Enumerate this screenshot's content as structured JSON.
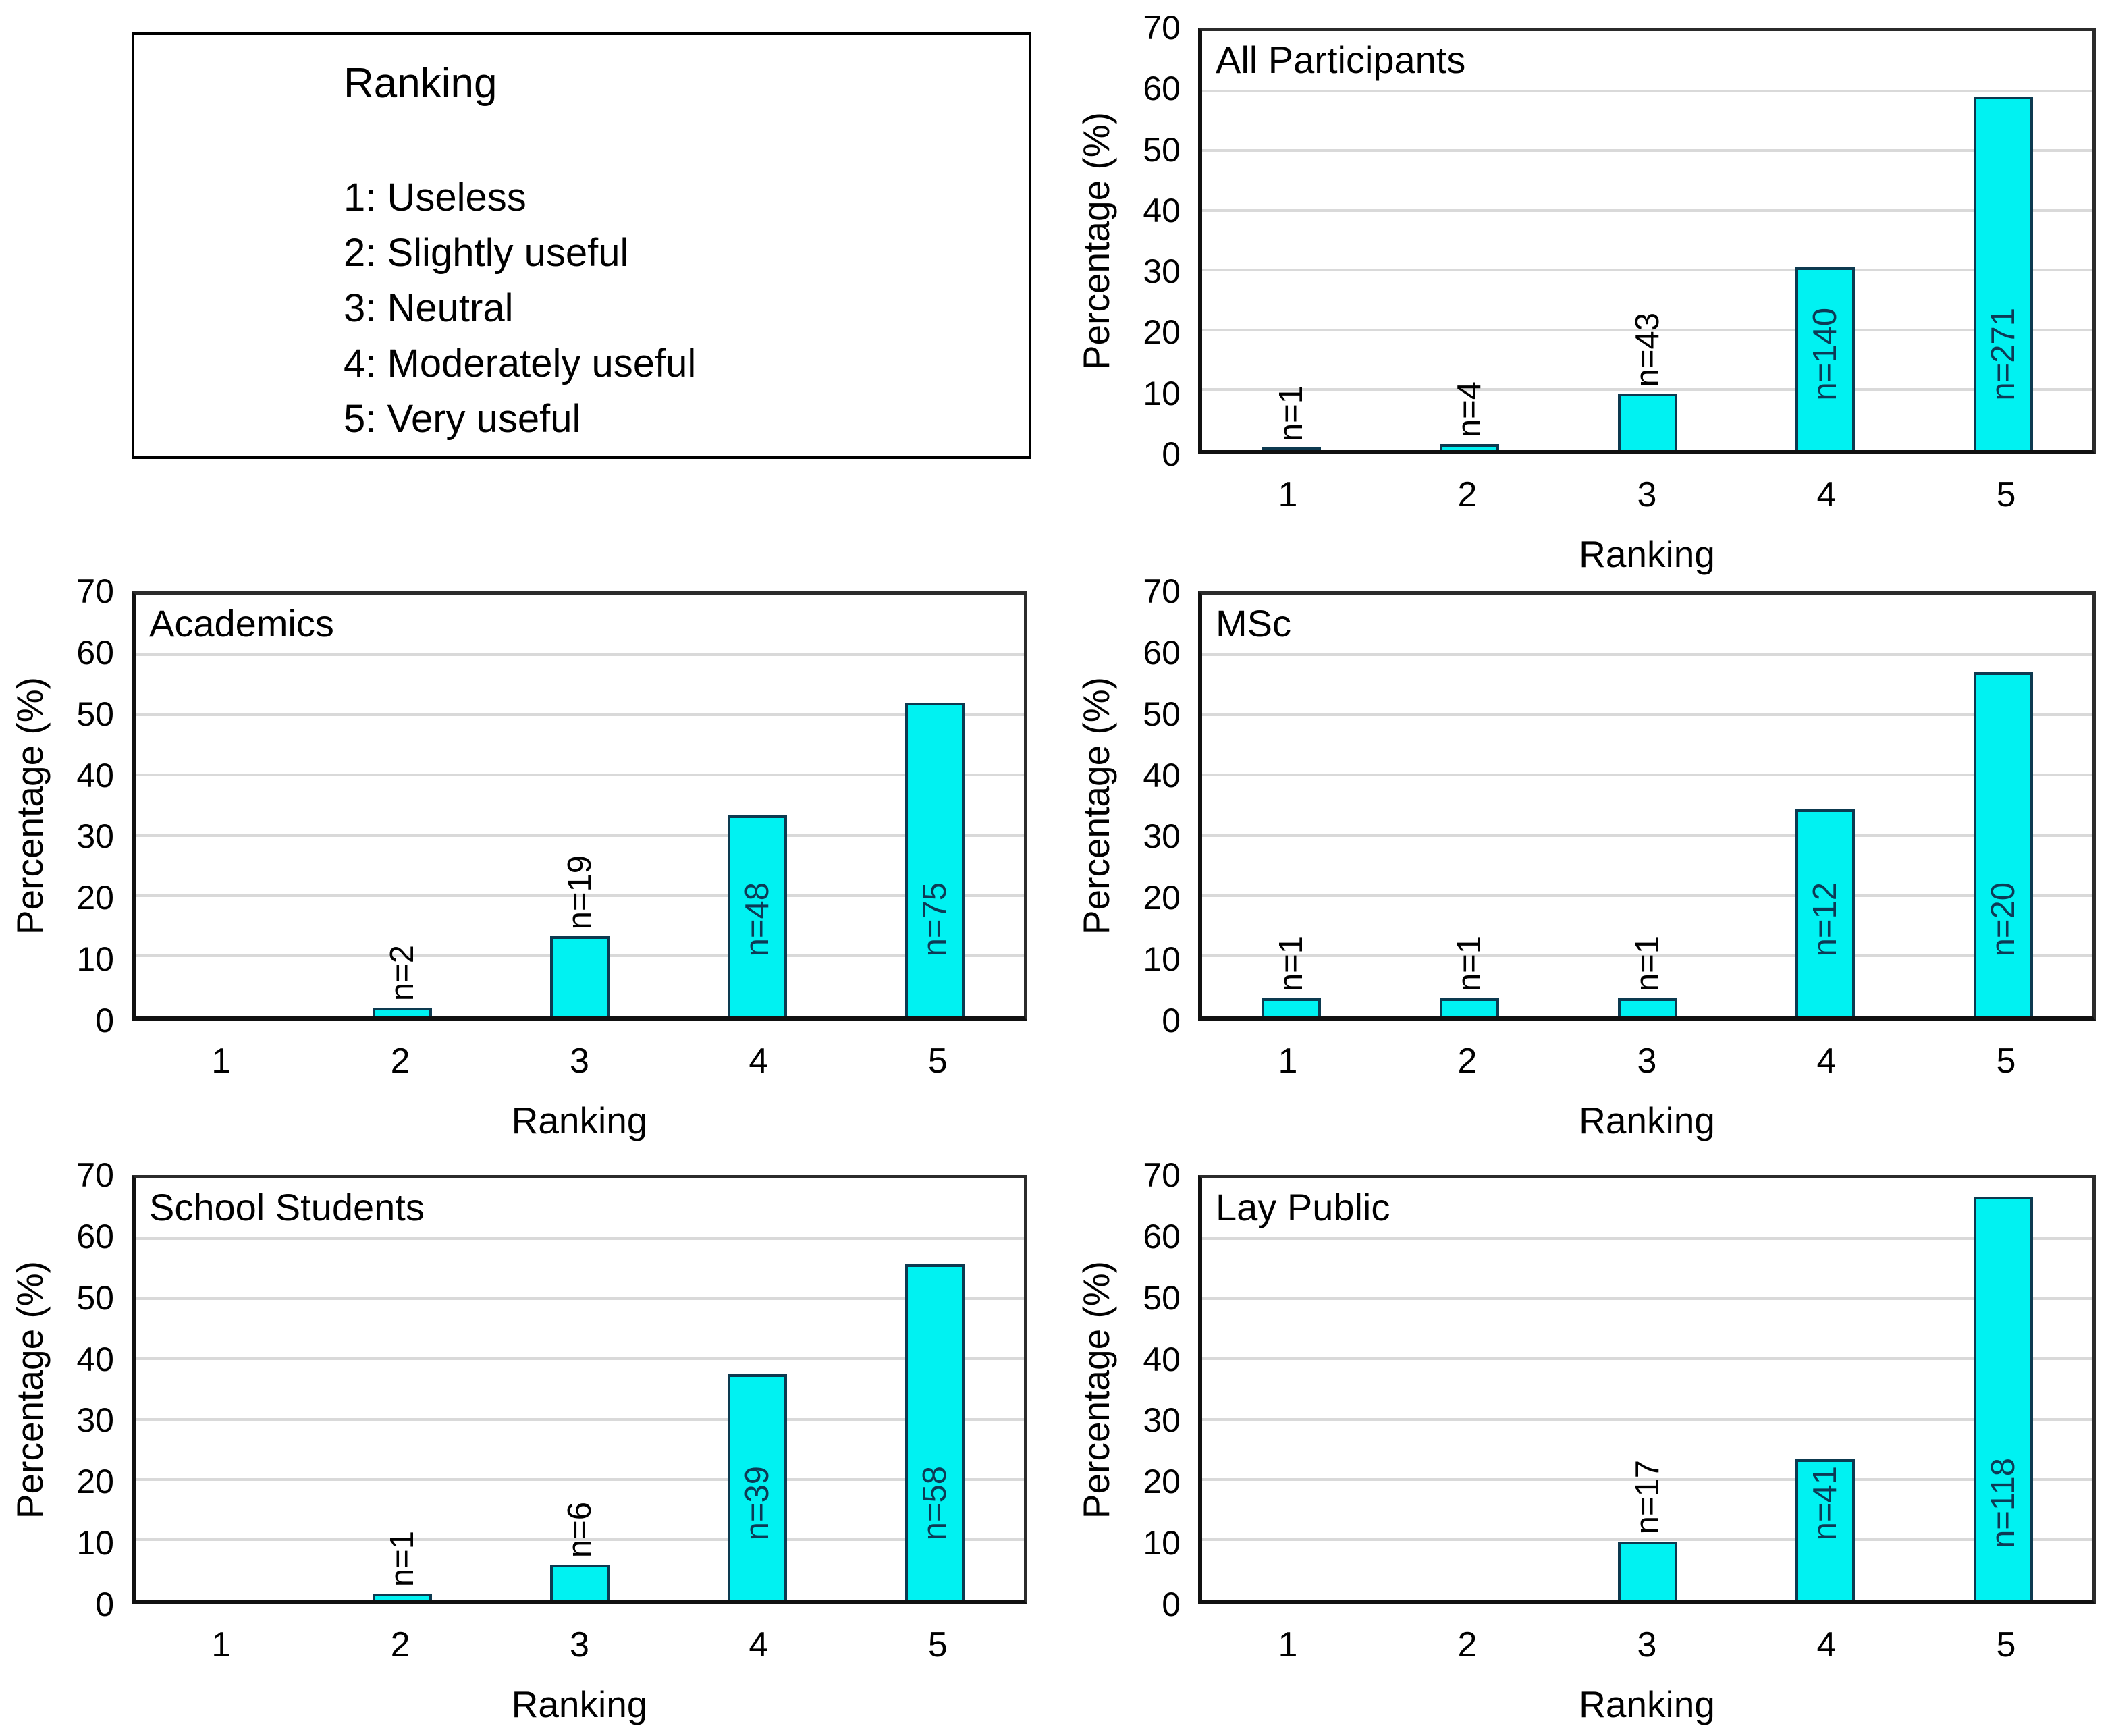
{
  "legend": {
    "title": "Ranking",
    "items": [
      "1: Useless",
      "2: Slightly useful",
      "3: Neutral",
      "4: Moderately useful",
      "5: Very useful"
    ]
  },
  "colors": {
    "bar_fill": "#00f2f2",
    "bar_border": "#0d3a50",
    "gridline": "#d9d9d9",
    "plot_border": "#2b2b2b",
    "count_label_inside": "#0d3a55",
    "count_label_outside": "#000000"
  },
  "chart_data": [
    {
      "type": "bar",
      "title": "All Participants",
      "xlabel": "Ranking",
      "ylabel": "Percentage (%)",
      "ylim": [
        0,
        70
      ],
      "yticks": [
        0,
        10,
        20,
        30,
        40,
        50,
        60,
        70
      ],
      "grid": "horizontal",
      "categories": [
        "1",
        "2",
        "3",
        "4",
        "5"
      ],
      "values": [
        0.2,
        0.9,
        9.4,
        30.5,
        59.0
      ],
      "counts": [
        1,
        4,
        43,
        140,
        271
      ],
      "count_labels": [
        "n=1",
        "n=4",
        "n=43",
        "n=140",
        "n=271"
      ]
    },
    {
      "type": "bar",
      "title": "Academics",
      "xlabel": "Ranking",
      "ylabel": "Percentage (%)",
      "ylim": [
        0,
        70
      ],
      "yticks": [
        0,
        10,
        20,
        30,
        40,
        50,
        60,
        70
      ],
      "grid": "horizontal",
      "categories": [
        "1",
        "2",
        "3",
        "4",
        "5"
      ],
      "values": [
        0,
        1.4,
        13.2,
        33.3,
        52.1
      ],
      "counts": [
        null,
        2,
        19,
        48,
        75
      ],
      "count_labels": [
        "",
        "n=2",
        "n=19",
        "n=48",
        "n=75"
      ]
    },
    {
      "type": "bar",
      "title": "MSc",
      "xlabel": "Ranking",
      "ylabel": "Percentage (%)",
      "ylim": [
        0,
        70
      ],
      "yticks": [
        0,
        10,
        20,
        30,
        40,
        50,
        60,
        70
      ],
      "grid": "horizontal",
      "categories": [
        "1",
        "2",
        "3",
        "4",
        "5"
      ],
      "values": [
        2.9,
        2.9,
        2.9,
        34.3,
        57.1
      ],
      "counts": [
        1,
        1,
        1,
        12,
        20
      ],
      "count_labels": [
        "n=1",
        "n=1",
        "n=1",
        "n=12",
        "n=20"
      ]
    },
    {
      "type": "bar",
      "title": "School Students",
      "xlabel": "Ranking",
      "ylabel": "Percentage (%)",
      "ylim": [
        0,
        70
      ],
      "yticks": [
        0,
        10,
        20,
        30,
        40,
        50,
        60,
        70
      ],
      "grid": "horizontal",
      "categories": [
        "1",
        "2",
        "3",
        "4",
        "5"
      ],
      "values": [
        0,
        1.0,
        5.8,
        37.5,
        55.8
      ],
      "counts": [
        null,
        1,
        6,
        39,
        58
      ],
      "count_labels": [
        "",
        "n=1",
        "n=6",
        "n=39",
        "n=58"
      ]
    },
    {
      "type": "bar",
      "title": "Lay Public",
      "xlabel": "Ranking",
      "ylabel": "Percentage (%)",
      "ylim": [
        0,
        70
      ],
      "yticks": [
        0,
        10,
        20,
        30,
        40,
        50,
        60,
        70
      ],
      "grid": "horizontal",
      "categories": [
        "1",
        "2",
        "3",
        "4",
        "5"
      ],
      "values": [
        0,
        0,
        9.7,
        23.3,
        67.0
      ],
      "counts": [
        null,
        null,
        17,
        41,
        118
      ],
      "count_labels": [
        "",
        "",
        "n=17",
        "n=41",
        "n=118"
      ]
    }
  ]
}
